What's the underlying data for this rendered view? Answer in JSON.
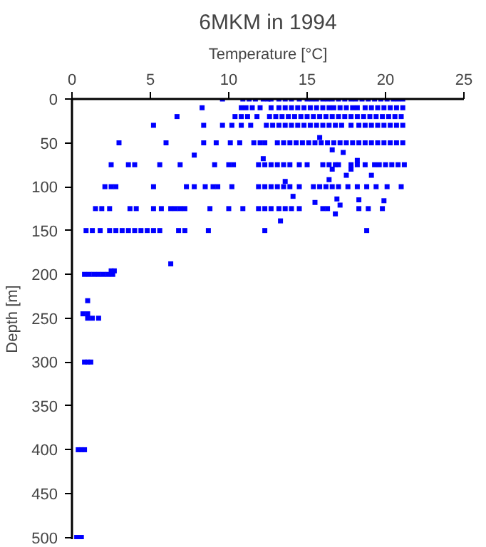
{
  "chart_data": {
    "type": "scatter",
    "title": "6MKM in 1994",
    "xlabel": "Temperature [°C]",
    "ylabel": "Depth [m]",
    "xlim": [
      0,
      25
    ],
    "xticks": [
      0,
      5,
      10,
      15,
      20,
      25
    ],
    "ylim": [
      502,
      0
    ],
    "yticks": [
      0,
      50,
      100,
      150,
      200,
      250,
      300,
      350,
      400,
      450,
      500
    ],
    "grid": false,
    "marker": "square",
    "series": [
      {
        "color": "#0000ff",
        "x": [
          9.6,
          10.9,
          11.3,
          11.7,
          12.2,
          12.5,
          12.7,
          13.2,
          13.6,
          14.0,
          14.5,
          15.0,
          15.3,
          15.6,
          16.0,
          16.3,
          16.6,
          17.0,
          17.4,
          17.8,
          18.1,
          18.5,
          18.9,
          19.3,
          19.7,
          20.1,
          20.5,
          20.8,
          21.1
        ],
        "values": [
          0,
          0,
          0,
          0,
          0,
          0,
          0,
          0,
          0,
          0,
          0,
          0,
          0,
          0,
          0,
          0,
          0,
          0,
          0,
          0,
          0,
          0,
          0,
          0,
          0,
          0,
          0,
          0,
          0
        ]
      },
      {
        "color": "#0000ff",
        "x": [
          8.3,
          10.8,
          11.1,
          11.5,
          12.0,
          12.7,
          13.2,
          13.6,
          14.0,
          14.4,
          14.8,
          15.2,
          15.6,
          16.0,
          16.4,
          16.7,
          17.1,
          17.5,
          17.9,
          18.2,
          18.7,
          19.1,
          19.5,
          19.9,
          20.3,
          20.7,
          21.1
        ],
        "values": [
          10,
          10,
          10,
          10,
          10,
          10,
          10,
          10,
          10,
          10,
          10,
          10,
          10,
          10,
          10,
          10,
          10,
          10,
          10,
          10,
          10,
          10,
          10,
          10,
          10,
          10,
          10
        ]
      },
      {
        "color": "#0000ff",
        "x": [
          6.7,
          10.4,
          10.8,
          11.2,
          11.8,
          12.6,
          13.0,
          13.4,
          13.8,
          14.2,
          14.6,
          15.0,
          15.4,
          15.8,
          16.2,
          16.6,
          17.0,
          17.4,
          17.8,
          18.2,
          18.6,
          19.0,
          19.4,
          19.8,
          20.2,
          20.6,
          21.0
        ],
        "values": [
          20,
          20,
          20,
          20,
          20,
          20,
          20,
          20,
          20,
          20,
          20,
          20,
          20,
          20,
          20,
          20,
          20,
          20,
          20,
          20,
          20,
          20,
          20,
          20,
          20,
          20,
          20
        ]
      },
      {
        "color": "#0000ff",
        "x": [
          5.2,
          8.4,
          9.6,
          10.2,
          10.8,
          11.4,
          12.4,
          12.8,
          13.2,
          13.6,
          14.0,
          14.4,
          14.8,
          15.2,
          15.6,
          16.0,
          16.4,
          16.8,
          17.2,
          17.8,
          18.3,
          18.7,
          19.1,
          19.5,
          19.9,
          20.3,
          20.7,
          21.1
        ],
        "values": [
          30,
          30,
          30,
          30,
          30,
          30,
          30,
          30,
          30,
          30,
          30,
          30,
          30,
          30,
          30,
          30,
          30,
          30,
          30,
          30,
          30,
          30,
          30,
          30,
          30,
          30,
          30,
          30
        ]
      },
      {
        "color": "#0000ff",
        "x": [
          3.0,
          6.0,
          8.4,
          9.2,
          10.1,
          10.7,
          11.6,
          12.0,
          12.3,
          13.1,
          13.5,
          13.9,
          14.3,
          14.7,
          15.1,
          15.5,
          15.9,
          16.3,
          16.7,
          17.1,
          17.5,
          17.9,
          18.3,
          18.7,
          19.1,
          19.5,
          19.9,
          20.3,
          20.7,
          21.1
        ],
        "values": [
          50,
          50,
          50,
          50,
          50,
          50,
          50,
          50,
          50,
          50,
          50,
          50,
          50,
          50,
          50,
          50,
          50,
          50,
          50,
          50,
          50,
          50,
          50,
          50,
          50,
          50,
          50,
          50,
          50,
          50
        ]
      },
      {
        "color": "#0000ff",
        "x": [
          2.5,
          3.6,
          4.0,
          5.6,
          6.9,
          9.1,
          10.0,
          10.3,
          11.9,
          12.3,
          12.7,
          13.1,
          13.5,
          13.9,
          14.5,
          15.0,
          16.0,
          16.4,
          16.8,
          17.0,
          17.8,
          18.2,
          18.7,
          19.3,
          19.6,
          20.0,
          20.4,
          20.8,
          21.2
        ],
        "values": [
          75,
          75,
          75,
          75,
          75,
          75,
          75,
          75,
          75,
          75,
          75,
          75,
          75,
          75,
          75,
          75,
          75,
          75,
          75,
          75,
          75,
          75,
          75,
          75,
          75,
          75,
          75,
          75,
          75
        ]
      },
      {
        "color": "#0000ff",
        "x": [
          2.1,
          2.5,
          2.8,
          5.2,
          7.3,
          7.8,
          8.5,
          9.0,
          9.3,
          10.2,
          11.9,
          12.3,
          12.7,
          13.1,
          13.5,
          13.9,
          14.5,
          15.4,
          15.8,
          16.2,
          16.6,
          17.0,
          17.6,
          18.2,
          18.8,
          19.4,
          20.1,
          21.0
        ],
        "values": [
          100,
          100,
          100,
          100,
          100,
          100,
          100,
          100,
          100,
          100,
          100,
          100,
          100,
          100,
          100,
          100,
          100,
          100,
          100,
          100,
          100,
          100,
          100,
          100,
          100,
          100,
          100,
          100
        ]
      },
      {
        "color": "#0000ff",
        "x": [
          1.5,
          1.9,
          2.4,
          3.7,
          4.1,
          5.2,
          5.7,
          6.3,
          6.6,
          6.9,
          7.2,
          8.8,
          10.0,
          10.9,
          11.9,
          12.3,
          12.7,
          13.2,
          13.6,
          14.0,
          14.5,
          16.0,
          16.3,
          18.3,
          18.9,
          19.8
        ],
        "values": [
          125,
          125,
          125,
          125,
          125,
          125,
          125,
          125,
          125,
          125,
          125,
          125,
          125,
          125,
          125,
          125,
          125,
          125,
          125,
          125,
          125,
          125,
          125,
          125,
          125,
          125
        ]
      },
      {
        "color": "#0000ff",
        "x": [
          0.9,
          1.3,
          1.8,
          2.4,
          2.8,
          3.2,
          3.6,
          4.0,
          4.4,
          4.8,
          5.2,
          5.6,
          6.8,
          7.2,
          8.7,
          12.3,
          18.8
        ],
        "values": [
          150,
          150,
          150,
          150,
          150,
          150,
          150,
          150,
          150,
          150,
          150,
          150,
          150,
          150,
          150,
          150,
          150
        ]
      },
      {
        "color": "#0000ff",
        "x": [
          15.8,
          16.6,
          17.3,
          12.2,
          18.2,
          16.6,
          17.8,
          17.5,
          19.1,
          13.6,
          16.4,
          14.1,
          16.9,
          15.5,
          18.3,
          19.9,
          17.1,
          16.8,
          13.3,
          7.8,
          6.3
        ],
        "values": [
          44,
          58,
          61,
          68,
          70,
          80,
          80,
          87,
          87,
          94,
          92,
          111,
          114,
          118,
          115,
          116,
          121,
          131,
          139,
          64,
          188
        ]
      },
      {
        "color": "#0000ff",
        "x": [
          0.8,
          1.1,
          1.4,
          1.7,
          2.0,
          2.3,
          2.6,
          2.5,
          2.7
        ],
        "values": [
          200,
          200,
          200,
          200,
          200,
          200,
          200,
          196,
          196
        ]
      },
      {
        "color": "#0000ff",
        "x": [
          1.0,
          0.7,
          1.0,
          1.0,
          1.3,
          1.7,
          0.8,
          1.0,
          1.2,
          0.4,
          0.6,
          0.8,
          0.3,
          0.6
        ],
        "values": [
          230,
          245,
          245,
          250,
          250,
          250,
          300,
          300,
          300,
          400,
          400,
          400,
          500,
          500
        ]
      }
    ]
  }
}
